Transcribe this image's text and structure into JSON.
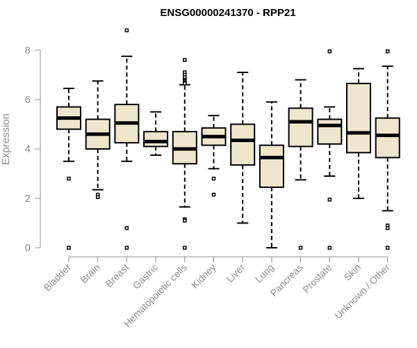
{
  "chart_data": {
    "type": "box",
    "title": "ENSG00000241370 - RPP21",
    "xlabel": "",
    "ylabel": "Expression",
    "ylim": [
      0,
      8
    ],
    "yticks": [
      0,
      2,
      4,
      6,
      8
    ],
    "grid": false,
    "box_fill": "#ede6cd",
    "categories": [
      "Bladder",
      "Brain",
      "Breast",
      "Gastric",
      "Hematopoietic cells",
      "Kidney",
      "Liver",
      "Lung",
      "Pancreas",
      "Prostate",
      "Skin",
      "Unknown / Other"
    ],
    "boxes": [
      {
        "min": 3.5,
        "q1": 4.8,
        "median": 5.25,
        "q3": 5.7,
        "max": 6.45,
        "outliers": [
          2.8,
          0.0
        ]
      },
      {
        "min": 2.35,
        "q1": 4.0,
        "median": 4.6,
        "q3": 5.2,
        "max": 6.75,
        "outliers": [
          2.15,
          2.05
        ]
      },
      {
        "min": 3.5,
        "q1": 4.25,
        "median": 5.05,
        "q3": 5.8,
        "max": 7.75,
        "outliers": [
          8.8,
          0.8,
          0.0
        ]
      },
      {
        "min": 3.75,
        "q1": 4.1,
        "median": 4.3,
        "q3": 4.7,
        "max": 5.5,
        "outliers": []
      },
      {
        "min": 1.65,
        "q1": 3.4,
        "median": 4.0,
        "q3": 4.7,
        "max": 6.6,
        "outliers": [
          7.6,
          7.1,
          7.0,
          6.9,
          6.8,
          6.75,
          6.7,
          6.65,
          1.15,
          1.1,
          0.0
        ]
      },
      {
        "min": 3.2,
        "q1": 4.15,
        "median": 4.5,
        "q3": 4.85,
        "max": 5.35,
        "outliers": [
          2.8,
          2.15
        ]
      },
      {
        "min": 1.0,
        "q1": 3.35,
        "median": 4.35,
        "q3": 5.0,
        "max": 7.1,
        "outliers": []
      },
      {
        "min": 0.0,
        "q1": 2.45,
        "median": 3.65,
        "q3": 4.15,
        "max": 5.9,
        "outliers": []
      },
      {
        "min": 2.75,
        "q1": 4.1,
        "median": 5.1,
        "q3": 5.65,
        "max": 6.8,
        "outliers": [
          0.0
        ]
      },
      {
        "min": 2.9,
        "q1": 4.2,
        "median": 4.95,
        "q3": 5.2,
        "max": 5.7,
        "outliers": [
          7.95,
          1.95,
          0.0
        ]
      },
      {
        "min": 2.0,
        "q1": 3.85,
        "median": 4.65,
        "q3": 6.65,
        "max": 7.25,
        "outliers": []
      },
      {
        "min": 1.5,
        "q1": 3.65,
        "median": 4.55,
        "q3": 5.25,
        "max": 7.35,
        "outliers": [
          7.95,
          0.9,
          0.8,
          0.0
        ]
      }
    ]
  }
}
